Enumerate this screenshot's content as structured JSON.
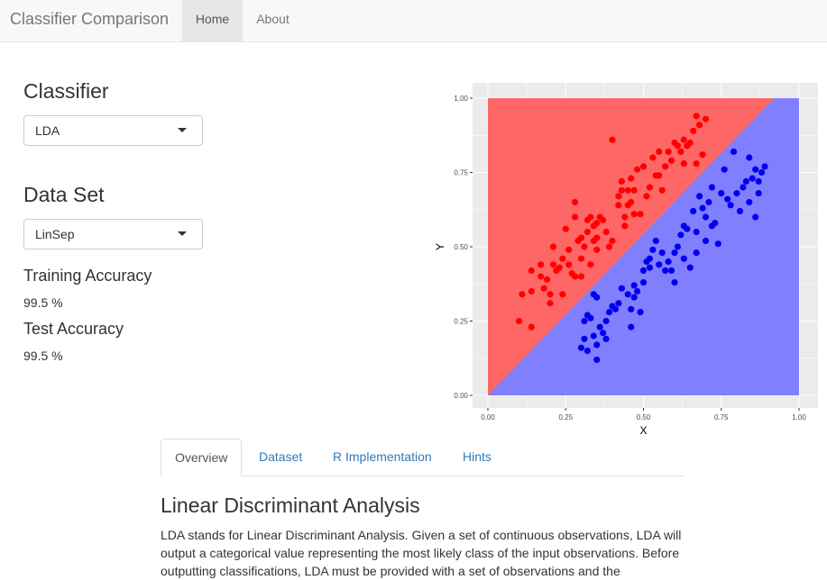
{
  "navbar": {
    "brand": "Classifier Comparison",
    "items": [
      {
        "label": "Home",
        "active": true
      },
      {
        "label": "About",
        "active": false
      }
    ]
  },
  "sidebar": {
    "classifier_heading": "Classifier",
    "classifier_selected": "LDA",
    "dataset_heading": "Data Set",
    "dataset_selected": "LinSep",
    "training_label": "Training Accuracy",
    "training_value": "99.5 %",
    "test_label": "Test Accuracy",
    "test_value": "99.5 %"
  },
  "tabs": [
    {
      "label": "Overview",
      "active": true
    },
    {
      "label": "Dataset",
      "active": false
    },
    {
      "label": "R Implementation",
      "active": false
    },
    {
      "label": "Hints",
      "active": false
    }
  ],
  "content": {
    "title": "Linear Discriminant Analysis",
    "paragraph": "LDA stands for Linear Discriminant Analysis. Given a set of continuous observations, LDA will output a categorical value representing the most likely class of the input observations. Before outputting classifications, LDA must be provided with a set of observations and the"
  },
  "colors": {
    "region_red": "#ff6666",
    "region_blue": "#8080ff",
    "point_red": "#ff0000",
    "point_blue": "#0000ee",
    "panel_bg": "#ebebeb",
    "grid": "#ffffff"
  },
  "chart_data": {
    "type": "scatter",
    "xlabel": "X",
    "ylabel": "Y",
    "xlim": [
      0,
      1
    ],
    "ylim": [
      0,
      1
    ],
    "x_ticks": [
      "0.00",
      "0.25",
      "0.50",
      "0.75",
      "1.00"
    ],
    "y_ticks": [
      "0.00",
      "0.25",
      "0.50",
      "0.75",
      "1.00"
    ],
    "grid": true,
    "decision_boundary": {
      "x0": 0.0,
      "y0": 0.0,
      "x1": 0.92,
      "y1": 1.0
    },
    "series": [
      {
        "color": "red",
        "points": [
          [
            0.1,
            0.25
          ],
          [
            0.11,
            0.34
          ],
          [
            0.14,
            0.23
          ],
          [
            0.14,
            0.35
          ],
          [
            0.14,
            0.42
          ],
          [
            0.17,
            0.44
          ],
          [
            0.17,
            0.4
          ],
          [
            0.18,
            0.36
          ],
          [
            0.19,
            0.39
          ],
          [
            0.2,
            0.34
          ],
          [
            0.2,
            0.31
          ],
          [
            0.21,
            0.44
          ],
          [
            0.21,
            0.5
          ],
          [
            0.22,
            0.42
          ],
          [
            0.23,
            0.43
          ],
          [
            0.24,
            0.46
          ],
          [
            0.24,
            0.34
          ],
          [
            0.25,
            0.56
          ],
          [
            0.26,
            0.44
          ],
          [
            0.26,
            0.49
          ],
          [
            0.27,
            0.41
          ],
          [
            0.28,
            0.4
          ],
          [
            0.28,
            0.6
          ],
          [
            0.28,
            0.65
          ],
          [
            0.29,
            0.52
          ],
          [
            0.3,
            0.46
          ],
          [
            0.3,
            0.53
          ],
          [
            0.3,
            0.4
          ],
          [
            0.31,
            0.5
          ],
          [
            0.32,
            0.55
          ],
          [
            0.32,
            0.59
          ],
          [
            0.33,
            0.6
          ],
          [
            0.33,
            0.44
          ],
          [
            0.34,
            0.57
          ],
          [
            0.34,
            0.52
          ],
          [
            0.35,
            0.49
          ],
          [
            0.35,
            0.58
          ],
          [
            0.35,
            0.53
          ],
          [
            0.36,
            0.6
          ],
          [
            0.37,
            0.59
          ],
          [
            0.38,
            0.55
          ],
          [
            0.39,
            0.5
          ],
          [
            0.4,
            0.52
          ],
          [
            0.4,
            0.86
          ],
          [
            0.42,
            0.67
          ],
          [
            0.42,
            0.64
          ],
          [
            0.43,
            0.69
          ],
          [
            0.43,
            0.72
          ],
          [
            0.44,
            0.6
          ],
          [
            0.44,
            0.57
          ],
          [
            0.45,
            0.64
          ],
          [
            0.45,
            0.69
          ],
          [
            0.46,
            0.65
          ],
          [
            0.46,
            0.73
          ],
          [
            0.47,
            0.61
          ],
          [
            0.47,
            0.69
          ],
          [
            0.48,
            0.76
          ],
          [
            0.49,
            0.61
          ],
          [
            0.5,
            0.77
          ],
          [
            0.51,
            0.67
          ],
          [
            0.52,
            0.7
          ],
          [
            0.53,
            0.8
          ],
          [
            0.54,
            0.74
          ],
          [
            0.55,
            0.74
          ],
          [
            0.55,
            0.82
          ],
          [
            0.56,
            0.69
          ],
          [
            0.57,
            0.77
          ],
          [
            0.58,
            0.82
          ],
          [
            0.59,
            0.79
          ],
          [
            0.6,
            0.85
          ],
          [
            0.61,
            0.84
          ],
          [
            0.62,
            0.82
          ],
          [
            0.63,
            0.78
          ],
          [
            0.63,
            0.86
          ],
          [
            0.64,
            0.84
          ],
          [
            0.65,
            0.85
          ],
          [
            0.66,
            0.89
          ],
          [
            0.67,
            0.78
          ],
          [
            0.67,
            0.94
          ],
          [
            0.68,
            0.91
          ],
          [
            0.69,
            0.81
          ],
          [
            0.7,
            0.93
          ]
        ]
      },
      {
        "color": "blue",
        "points": [
          [
            0.3,
            0.16
          ],
          [
            0.31,
            0.25
          ],
          [
            0.31,
            0.19
          ],
          [
            0.32,
            0.27
          ],
          [
            0.32,
            0.15
          ],
          [
            0.33,
            0.26
          ],
          [
            0.34,
            0.34
          ],
          [
            0.34,
            0.2
          ],
          [
            0.35,
            0.17
          ],
          [
            0.35,
            0.33
          ],
          [
            0.35,
            0.12
          ],
          [
            0.36,
            0.23
          ],
          [
            0.37,
            0.21
          ],
          [
            0.38,
            0.19
          ],
          [
            0.38,
            0.25
          ],
          [
            0.39,
            0.28
          ],
          [
            0.4,
            0.3
          ],
          [
            0.41,
            0.29
          ],
          [
            0.42,
            0.31
          ],
          [
            0.43,
            0.36
          ],
          [
            0.45,
            0.34
          ],
          [
            0.46,
            0.29
          ],
          [
            0.46,
            0.23
          ],
          [
            0.47,
            0.33
          ],
          [
            0.47,
            0.37
          ],
          [
            0.48,
            0.35
          ],
          [
            0.49,
            0.28
          ],
          [
            0.5,
            0.38
          ],
          [
            0.5,
            0.42
          ],
          [
            0.51,
            0.45
          ],
          [
            0.52,
            0.46
          ],
          [
            0.52,
            0.43
          ],
          [
            0.53,
            0.49
          ],
          [
            0.54,
            0.52
          ],
          [
            0.55,
            0.44
          ],
          [
            0.56,
            0.48
          ],
          [
            0.57,
            0.42
          ],
          [
            0.58,
            0.45
          ],
          [
            0.59,
            0.42
          ],
          [
            0.6,
            0.38
          ],
          [
            0.6,
            0.48
          ],
          [
            0.61,
            0.5
          ],
          [
            0.62,
            0.54
          ],
          [
            0.63,
            0.46
          ],
          [
            0.63,
            0.57
          ],
          [
            0.64,
            0.56
          ],
          [
            0.65,
            0.43
          ],
          [
            0.66,
            0.62
          ],
          [
            0.67,
            0.48
          ],
          [
            0.67,
            0.55
          ],
          [
            0.68,
            0.67
          ],
          [
            0.69,
            0.63
          ],
          [
            0.7,
            0.52
          ],
          [
            0.7,
            0.6
          ],
          [
            0.71,
            0.65
          ],
          [
            0.72,
            0.57
          ],
          [
            0.72,
            0.7
          ],
          [
            0.73,
            0.58
          ],
          [
            0.74,
            0.51
          ],
          [
            0.75,
            0.68
          ],
          [
            0.76,
            0.76
          ],
          [
            0.77,
            0.66
          ],
          [
            0.78,
            0.64
          ],
          [
            0.79,
            0.82
          ],
          [
            0.8,
            0.68
          ],
          [
            0.81,
            0.62
          ],
          [
            0.82,
            0.7
          ],
          [
            0.83,
            0.72
          ],
          [
            0.84,
            0.65
          ],
          [
            0.84,
            0.8
          ],
          [
            0.85,
            0.73
          ],
          [
            0.86,
            0.76
          ],
          [
            0.86,
            0.6
          ],
          [
            0.87,
            0.68
          ],
          [
            0.87,
            0.72
          ],
          [
            0.88,
            0.75
          ],
          [
            0.89,
            0.77
          ]
        ]
      }
    ]
  }
}
